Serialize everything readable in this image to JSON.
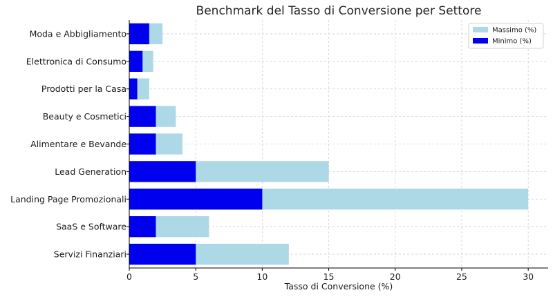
{
  "chart_data": {
    "type": "bar",
    "orientation": "horizontal",
    "title": "Benchmark del Tasso di Conversione per Settore",
    "xlabel": "Tasso di Conversione (%)",
    "ylabel": "",
    "xlim": [
      0,
      31.5
    ],
    "x_ticks": [
      0,
      5,
      10,
      15,
      20,
      25,
      30
    ],
    "grid": true,
    "legend_position": "top-right",
    "categories": [
      "Moda e Abbigliamento",
      "Elettronica di Consumo",
      "Prodotti per la Casa",
      "Beauty e Cosmetici",
      "Alimentare e Bevande",
      "Lead Generation",
      "Landing Page Promozionali",
      "SaaS e Software",
      "Servizi Finanziari"
    ],
    "series": [
      {
        "name": "Massimo (%)",
        "color": "#add8e6",
        "values": [
          2.5,
          1.8,
          1.5,
          3.5,
          4,
          15,
          30,
          6,
          12
        ]
      },
      {
        "name": "Minimo (%)",
        "color": "#0000ee",
        "values": [
          1.5,
          1,
          0.6,
          2,
          2,
          5,
          10,
          2,
          5
        ]
      }
    ]
  }
}
